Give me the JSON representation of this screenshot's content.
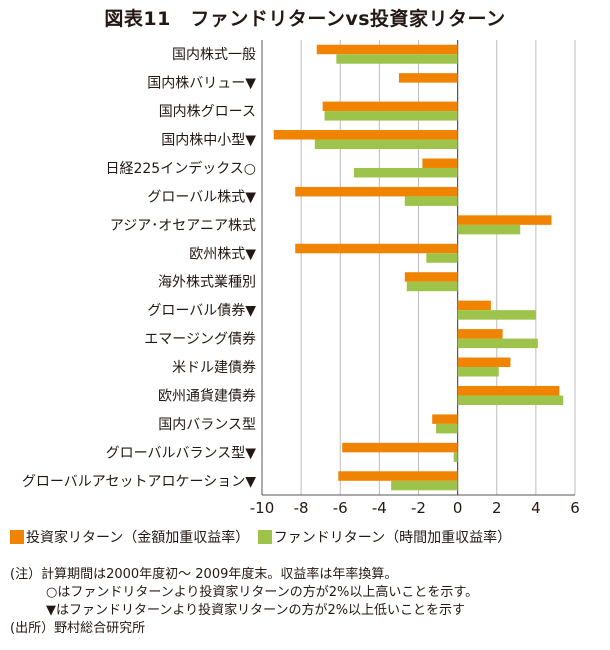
{
  "chart_data": {
    "type": "bar",
    "orientation": "horizontal",
    "title": "図表11　ファンドリターンvs投資家リターン",
    "categories": [
      "国内株式一般",
      "国内株バリュー▼",
      "国内株グロース",
      "国内株中小型▼",
      "日経225インデックス○",
      "グローバル株式▼",
      "アジア･オセアニア株式",
      "欧州株式▼",
      "海外株式業種別",
      "グローバル債券▼",
      "エマージング債券",
      "米ドル建債券",
      "欧州通貨建債券",
      "国内バランス型",
      "グローバルバランス型▼",
      "グローバルアセットアロケーション▼"
    ],
    "series": [
      {
        "name": "投資家リターン（金額加重収益率）",
        "color": "#f08300",
        "values": [
          -7.2,
          -3.0,
          -6.9,
          -9.4,
          -1.8,
          -8.3,
          4.8,
          -8.3,
          -2.7,
          1.7,
          2.3,
          2.7,
          5.2,
          -1.3,
          -5.9,
          -6.1
        ]
      },
      {
        "name": "ファンドリターン（時間加重収益率）",
        "color": "#9dc34a",
        "values": [
          -6.2,
          0.0,
          -6.8,
          -7.3,
          -5.3,
          -2.7,
          3.2,
          -1.6,
          -2.6,
          4.0,
          4.1,
          2.1,
          5.4,
          -1.1,
          -0.2,
          -3.4
        ]
      }
    ],
    "xlim": [
      -10,
      6
    ],
    "xticks": [
      "-10",
      "-8",
      "-6",
      "-4",
      "-2",
      "0",
      "2",
      "4",
      "6"
    ],
    "xunit": "(%)",
    "grid": true
  },
  "notes": {
    "line1": "(注）計算期間は2000年度初～ 2009年度末。収益率は年率換算。",
    "line2": "○はファンドリターンより投資家リターンの方が2%以上高いことを示す。",
    "line3": "▼はファンドリターンより投資家リターンの方が2%以上低いことを示す",
    "source": "(出所）野村総合研究所"
  }
}
